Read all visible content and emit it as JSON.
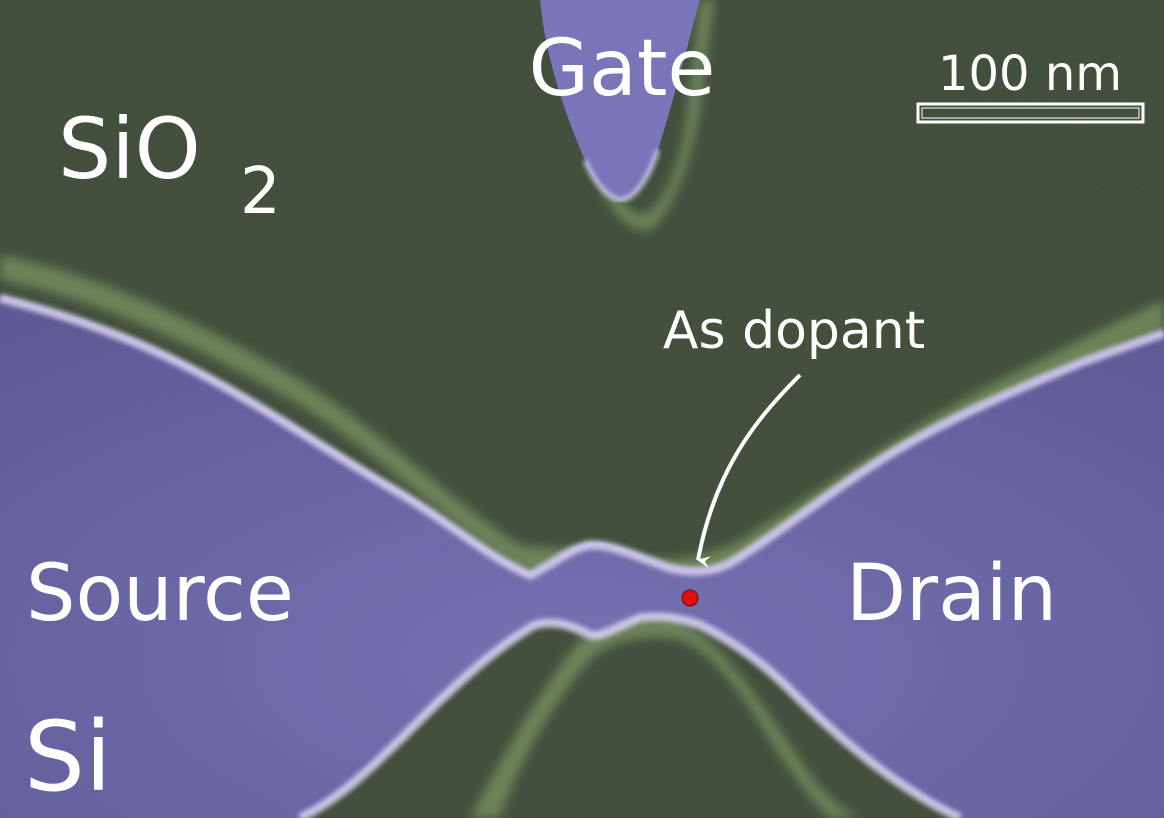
{
  "labels": {
    "sio2_main": "SiO",
    "sio2_sub": "2",
    "gate": "Gate",
    "scale": "100 nm",
    "dopant": "As dopant",
    "source": "Source",
    "drain": "Drain",
    "si": "Si"
  },
  "colors": {
    "oxide": "#3e4b38",
    "oxide_edge": "#7f9866",
    "silicon": "#6e6aa8",
    "silicon_edge": "#d4d0ee",
    "dopant": "#e01010",
    "text": "#ffffff"
  }
}
